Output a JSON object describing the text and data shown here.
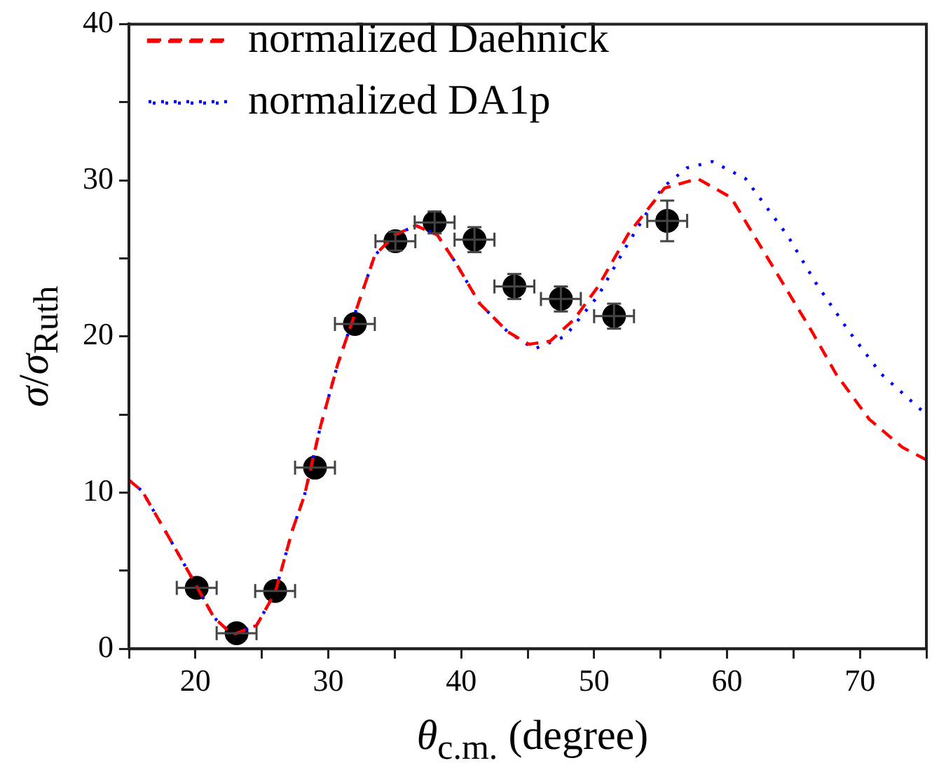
{
  "chart_data": {
    "type": "line",
    "xlabel": "θ$_{c.m.}$ (degree)",
    "ylabel": "σ/σ$_{Ruth}$",
    "xlim": [
      15,
      75
    ],
    "xticks": [
      {
        "value": 15,
        "label": null
      },
      20,
      {
        "value": 25,
        "label": null
      },
      30,
      {
        "value": 35,
        "label": null
      },
      40,
      {
        "value": 45,
        "label": null
      },
      50,
      {
        "value": 55,
        "label": null
      },
      60,
      {
        "value": 65,
        "label": null
      },
      70,
      {
        "value": 75,
        "label": null
      }
    ],
    "ylim": [
      0,
      40
    ],
    "yticks": [
      0,
      {
        "value": 5,
        "label": null
      },
      10,
      {
        "value": 15,
        "label": null
      },
      20,
      {
        "value": 25,
        "label": null
      },
      30,
      {
        "value": 35,
        "label": null
      },
      40
    ],
    "grid": false,
    "legend": "top left",
    "series": [
      {
        "name": "normalized Daehnick",
        "line_style": "dashed",
        "marker": "none",
        "color": "#ff0000",
        "x": [
          15,
          16,
          18.1,
          19.9,
          21.4,
          22.8,
          24.6,
          26,
          27.3,
          28.2,
          29.4,
          30.7,
          33.5,
          35,
          36.6,
          38.2,
          39.6,
          41.4,
          43.5,
          45.1,
          46.7,
          48.5,
          50.3,
          52.6,
          55.3,
          57.8,
          60.3,
          63.5,
          66.4,
          68.2,
          70.7,
          73.2,
          75
        ],
        "values": [
          10.8,
          10.1,
          7.0,
          4.3,
          2.0,
          0.9,
          1.5,
          3.6,
          7.6,
          9.8,
          14.2,
          18.2,
          25.2,
          26.5,
          27.1,
          26.5,
          24.7,
          22.1,
          20.3,
          19.5,
          19.7,
          21.1,
          23.2,
          26.6,
          29.5,
          30.1,
          28.9,
          24.4,
          20.3,
          17.6,
          14.7,
          12.9,
          12.1
        ]
      },
      {
        "name": "normalized DA1p",
        "line_style": "dotted",
        "marker": "none",
        "color": "#0000ff",
        "x": [
          15,
          16,
          18.1,
          19.9,
          21.4,
          22.8,
          24.6,
          26,
          27.3,
          28.2,
          29.4,
          30.7,
          33.5,
          35,
          36.6,
          38.2,
          39.6,
          41.4,
          43.5,
          45.5,
          47.8,
          50.3,
          52.3,
          55.1,
          57,
          58.9,
          61.4,
          64.6,
          66.7,
          69.2,
          71.6,
          74.6,
          75
        ],
        "values": [
          10.8,
          10.1,
          7.0,
          4.3,
          2.0,
          0.9,
          1.5,
          3.6,
          7.6,
          9.8,
          14.2,
          18.2,
          25.2,
          26.5,
          27.1,
          26.5,
          24.7,
          22.1,
          20.3,
          19.2,
          20.0,
          22.6,
          25.6,
          29.5,
          30.8,
          31.2,
          30.1,
          26.4,
          23.4,
          20.3,
          17.6,
          15.3,
          15.0
        ]
      },
      {
        "type": "scatter",
        "marker": "circle",
        "color": "#000000",
        "x": [
          20.1,
          23.1,
          26.0,
          29.0,
          32.0,
          35.05,
          38.0,
          41.0,
          44.0,
          47.5,
          51.5,
          55.5
        ],
        "values": [
          3.9,
          1.0,
          3.7,
          11.6,
          20.8,
          26.1,
          27.3,
          26.2,
          23.2,
          22.4,
          21.3,
          27.4
        ],
        "errors": [
          null,
          null,
          null,
          null,
          null,
          0.6,
          0.7,
          0.8,
          0.8,
          0.8,
          0.8,
          1.3
        ],
        "xerrors": [
          1.5,
          1.5,
          1.5,
          1.5,
          1.5,
          1.5,
          1.5,
          1.5,
          1.5,
          1.5,
          1.5,
          1.5
        ]
      }
    ]
  }
}
